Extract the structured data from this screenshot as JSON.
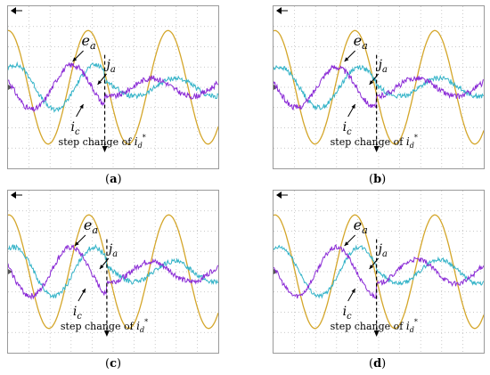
{
  "colors": {
    "e_a": "#d4a62a",
    "i_a": "#33b3c8",
    "i_c": "#8a2ad6",
    "grid": "#b8b8b8",
    "border": "#9a9a9a"
  },
  "panels": [
    {
      "label": "a",
      "annotations": {
        "e": "e",
        "e_sub": "a",
        "ia": "j",
        "ia_sub": "a",
        "ic": "i",
        "ic_sub": "c",
        "step_text": "step change of",
        "step_var": "i",
        "step_sub": "d",
        "step_sup": "*"
      },
      "chart_data": {
        "type": "line",
        "xlim": [
          0,
          10
        ],
        "ylim": [
          -4,
          4
        ],
        "grid": true,
        "step_at": 4.6,
        "series": [
          {
            "key": "e_a",
            "amplitude": 2.8,
            "period": 3.8,
            "phase": 1.55,
            "offset": 0,
            "noise": 0,
            "amp_after": 2.8
          },
          {
            "key": "i_a",
            "amplitude": 1.1,
            "period": 3.8,
            "phase": 1.0,
            "offset": 0,
            "noise": 0.12,
            "amp_after": 0.45
          },
          {
            "key": "i_c",
            "amplitude": 1.1,
            "period": 3.8,
            "phase": 2.8,
            "offset": 0,
            "noise": 0.14,
            "amp_after": 0.45
          }
        ]
      }
    },
    {
      "label": "b",
      "annotations": {
        "e": "e",
        "e_sub": "a",
        "ia": "j",
        "ia_sub": "a",
        "ic": "i",
        "ic_sub": "c",
        "step_text": "step change of",
        "step_var": "i",
        "step_sub": "d",
        "step_sup": "*"
      },
      "chart_data": {
        "type": "line",
        "xlim": [
          0,
          10
        ],
        "ylim": [
          -4,
          4
        ],
        "grid": true,
        "step_at": 4.9,
        "series": [
          {
            "key": "e_a",
            "amplitude": 2.8,
            "period": 3.8,
            "phase": 1.45,
            "offset": 0,
            "noise": 0,
            "amp_after": 2.8
          },
          {
            "key": "i_a",
            "amplitude": 1.0,
            "period": 3.8,
            "phase": 1.1,
            "offset": 0,
            "noise": 0.12,
            "amp_after": 0.45
          },
          {
            "key": "i_c",
            "amplitude": 1.0,
            "period": 3.8,
            "phase": 2.9,
            "offset": 0,
            "noise": 0.14,
            "amp_after": 0.45
          }
        ]
      }
    },
    {
      "label": "c",
      "annotations": {
        "e": "e",
        "e_sub": "a",
        "ia": "j",
        "ia_sub": "a",
        "ic": "i",
        "ic_sub": "c",
        "step_text": "step change of",
        "step_var": "i",
        "step_sub": "d",
        "step_sup": "*"
      },
      "chart_data": {
        "type": "line",
        "xlim": [
          0,
          10
        ],
        "ylim": [
          -4,
          4
        ],
        "grid": true,
        "step_at": 4.7,
        "series": [
          {
            "key": "e_a",
            "amplitude": 2.8,
            "period": 3.8,
            "phase": 1.5,
            "offset": 0,
            "noise": 0,
            "amp_after": 2.8
          },
          {
            "key": "i_a",
            "amplitude": 1.2,
            "period": 3.8,
            "phase": 1.1,
            "offset": 0,
            "noise": 0.12,
            "amp_after": 0.5
          },
          {
            "key": "i_c",
            "amplitude": 1.2,
            "period": 3.8,
            "phase": 2.9,
            "offset": 0,
            "noise": 0.14,
            "amp_after": 0.5
          }
        ]
      }
    },
    {
      "label": "d",
      "annotations": {
        "e": "e",
        "e_sub": "a",
        "ia": "j",
        "ia_sub": "a",
        "ic": "i",
        "ic_sub": "c",
        "step_text": "step change of",
        "step_var": "i",
        "step_sub": "d",
        "step_sup": "*"
      },
      "chart_data": {
        "type": "line",
        "xlim": [
          0,
          10
        ],
        "ylim": [
          -4,
          4
        ],
        "grid": true,
        "step_at": 4.9,
        "series": [
          {
            "key": "e_a",
            "amplitude": 2.8,
            "period": 3.8,
            "phase": 1.45,
            "offset": 0,
            "noise": 0,
            "amp_after": 2.8
          },
          {
            "key": "i_a",
            "amplitude": 1.2,
            "period": 3.8,
            "phase": 1.1,
            "offset": 0,
            "noise": 0.1,
            "amp_after": 0.6
          },
          {
            "key": "i_c",
            "amplitude": 1.2,
            "period": 3.8,
            "phase": 2.9,
            "offset": 0,
            "noise": 0.12,
            "amp_after": 0.6
          }
        ]
      }
    }
  ]
}
